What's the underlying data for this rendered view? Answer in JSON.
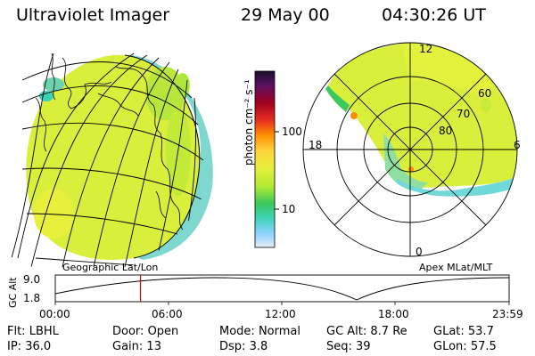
{
  "header": {
    "instrument": "Ultraviolet Imager",
    "date": "29 May 00",
    "time": "04:30:26 UT"
  },
  "geo_panel": {
    "label": "Geographic Lat/Lon"
  },
  "polar_panel": {
    "label": "Apex MLat/MLT",
    "mlt_labels": {
      "top": "12",
      "left": "18",
      "right": "6",
      "bottom": "0"
    },
    "lat_labels": [
      "60",
      "70",
      "80"
    ]
  },
  "colorbar": {
    "unit": "photon cm⁻² s⁻¹",
    "ticks": [
      "100",
      "10"
    ],
    "colors": [
      "#1a1030",
      "#5a1060",
      "#a00020",
      "#e83020",
      "#ff8c00",
      "#ffd23c",
      "#e6f03c",
      "#b4eb32",
      "#3cc85a",
      "#3cd2b4",
      "#8cd2ff",
      "#e6ecf8"
    ]
  },
  "timeline": {
    "ylabel": "GC Alt",
    "yticks": [
      "9.0",
      "1.8"
    ],
    "xticks": [
      "00:00",
      "06:00",
      "12:00",
      "18:00",
      "23:59"
    ],
    "marker_time_fraction": 0.1878
  },
  "info": {
    "row1": [
      {
        "label": "Flt:",
        "value": "LBHL"
      },
      {
        "label": "Door:",
        "value": "Open"
      },
      {
        "label": "Mode:",
        "value": "Normal"
      },
      {
        "label": "GC Alt:",
        "value": "8.7 Re"
      },
      {
        "label": "GLat:",
        "value": "53.7"
      }
    ],
    "row2": [
      {
        "label": "IP:",
        "value": "36.0"
      },
      {
        "label": "Gain:",
        "value": "13"
      },
      {
        "label": "Dsp:",
        "value": "3.8"
      },
      {
        "label": "Seq:",
        "value": "39"
      },
      {
        "label": "GLon:",
        "value": "57.5"
      }
    ]
  }
}
